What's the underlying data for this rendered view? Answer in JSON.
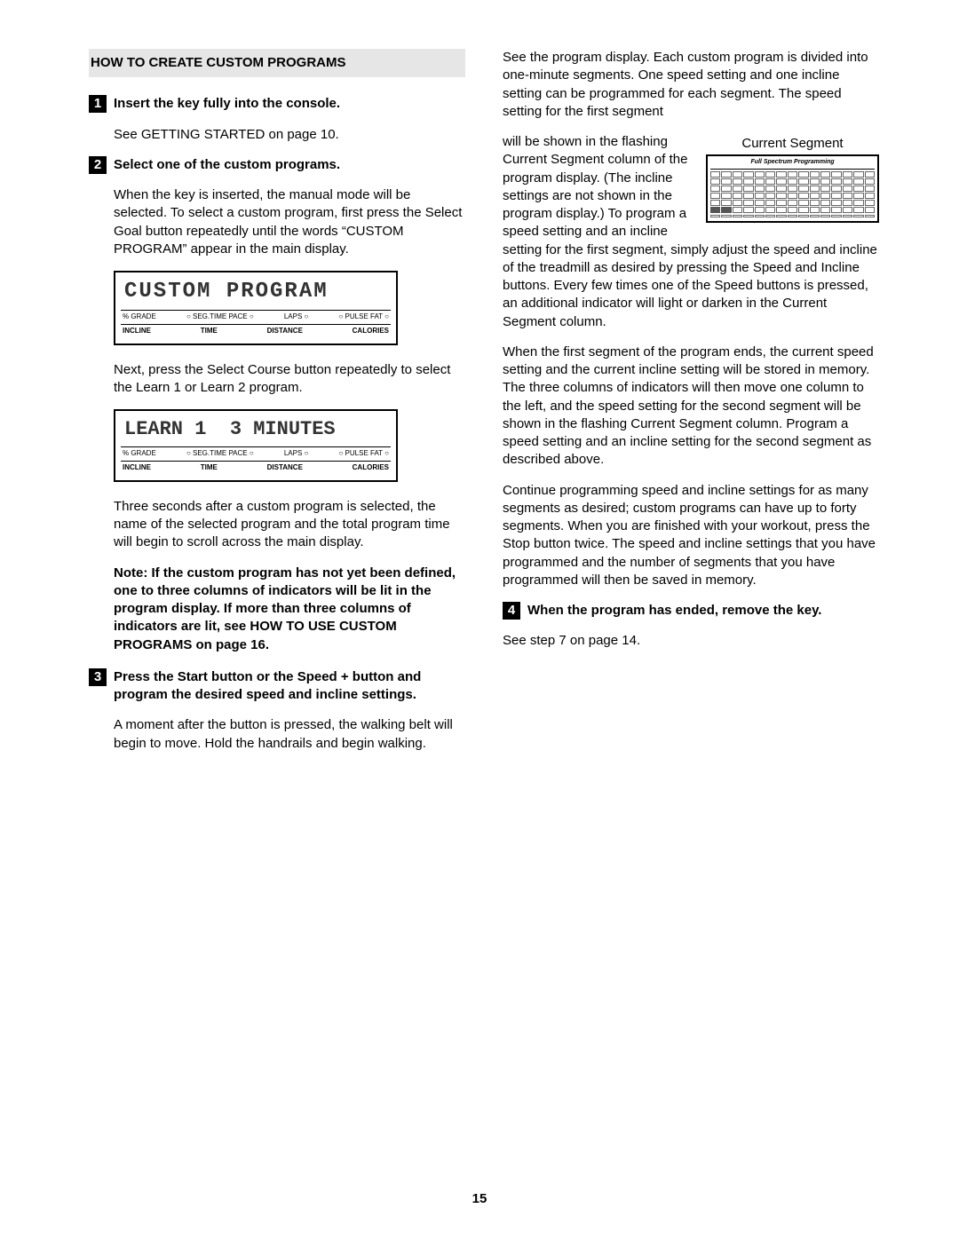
{
  "heading": "HOW TO CREATE CUSTOM PROGRAMS",
  "pageNumber": "15",
  "left": {
    "step1": {
      "num": "1",
      "title": "Insert the key fully into the console.",
      "body": "See GETTING STARTED on page 10."
    },
    "step2": {
      "num": "2",
      "title": "Select one of the custom programs.",
      "body1": "When the key is inserted, the manual mode will be selected. To select a custom program, first press the Select Goal button repeatedly until the words “CUSTOM PROGRAM” appear in the main display.",
      "lcd1": {
        "text": "CUSTOM PROGRAM",
        "row1": [
          "% GRADE",
          "○ SEG.TIME PACE ○",
          "LAPS ○",
          "○ PULSE FAT ○"
        ],
        "row2": [
          "INCLINE",
          "TIME",
          "DISTANCE",
          "CALORIES"
        ]
      },
      "body2": "Next, press the Select Course button repeatedly to select the Learn 1 or Learn 2 program.",
      "lcd2": {
        "text": "LEARN 1  3 MINUTES",
        "row1": [
          "% GRADE",
          "○ SEG.TIME PACE ○",
          "LAPS ○",
          "○ PULSE FAT ○"
        ],
        "row2": [
          "INCLINE",
          "TIME",
          "DISTANCE",
          "CALORIES"
        ]
      },
      "body3": "Three seconds after a custom program is selected, the name of the selected program and the total program time will begin to scroll across the main display.",
      "note": "Note: If the custom program has not yet been defined, one to three columns of indicators will be lit in the program display. If more than three columns of indicators are lit, see HOW TO USE CUSTOM PROGRAMS on page 16."
    },
    "step3": {
      "num": "3",
      "title": "Press the Start button or the Speed + button and program the desired speed and incline settings.",
      "body": "A moment after the button is pressed, the walking belt will begin to move. Hold the handrails and begin walking."
    }
  },
  "right": {
    "p1a": "See the program display. Each custom program is divided into one-minute segments. One speed setting and one incline setting can be programmed for each segment. The speed setting for the first segment will be shown in the flashing Current Segment column of the program display. (The incline settings are not shown in the pro",
    "seg": {
      "title": "Current Segment",
      "sub": "Full Spectrum Programming",
      "columns": 15,
      "rows": 6,
      "darkCells": [
        [
          5,
          0
        ],
        [
          5,
          1
        ]
      ]
    },
    "p1b": "gram display.) To program a speed setting and an incline setting for the first segment, simply adjust the speed and incline of the treadmill as desired by pressing the Speed and Incline buttons. Every few times one of the Speed buttons is pressed, an additional indicator will light or darken in the Current Segment column.",
    "p2": "When the first segment of the program ends, the current speed setting and the current incline setting will be stored in memory. The three columns of indicators will then move one column to the left, and the speed setting for the second segment will be shown in the flashing Current Segment column. Program a speed setting and an incline setting for the second segment as described above.",
    "p3": "Continue programming speed and incline settings for as many segments as desired; custom programs can have up to forty segments. When you are finished with your workout, press the Stop button twice. The speed and incline settings that you have programmed and the number of segments that you have programmed will then be saved in memory.",
    "step4": {
      "num": "4",
      "title": "When the program has ended, remove the key.",
      "body": "See step 7 on page 14."
    }
  }
}
